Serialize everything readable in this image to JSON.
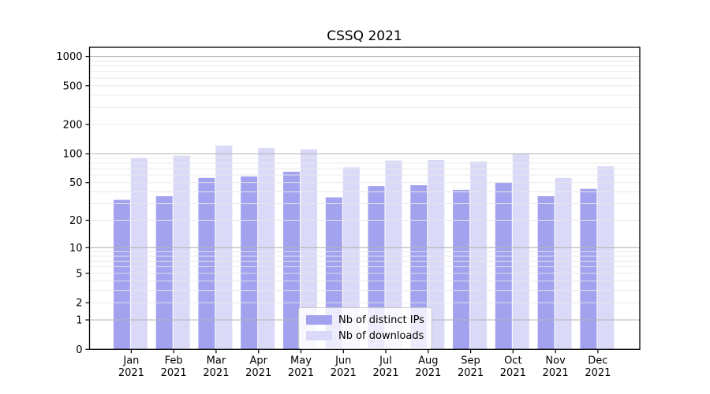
{
  "chart_data": {
    "type": "bar",
    "title": "CSSQ 2021",
    "categories": [
      "Jan",
      "Feb",
      "Mar",
      "Apr",
      "May",
      "Jun",
      "Jul",
      "Aug",
      "Sep",
      "Oct",
      "Nov",
      "Dec"
    ],
    "x_tick_year": "2021",
    "series": [
      {
        "name": "Nb of distinct IPs",
        "color": "#a2a2ef",
        "values": [
          33,
          36,
          56,
          58,
          65,
          35,
          46,
          47,
          42,
          50,
          36,
          43
        ]
      },
      {
        "name": "Nb of downloads",
        "color": "#dadaf8",
        "values": [
          90,
          95,
          121,
          114,
          111,
          72,
          85,
          86,
          83,
          99,
          56,
          74
        ]
      }
    ],
    "yscale": "symlog (position ~ ln(1+v))",
    "ylabel": "",
    "xlabel": "",
    "ylim": [
      0,
      1240
    ],
    "y_ticks": [
      0,
      1,
      2,
      5,
      10,
      20,
      50,
      100,
      200,
      500,
      1000
    ],
    "y_minor_gridlines": [
      3,
      4,
      6,
      7,
      8,
      9,
      30,
      40,
      60,
      70,
      80,
      90,
      300,
      400,
      600,
      700,
      800,
      900
    ],
    "grid": true,
    "legend_position": "lower center",
    "colors": {
      "axis": "#000000",
      "grid_major": "#b4b4b4",
      "grid_minor": "#e8e8e8",
      "background": "#ffffff",
      "tick_label": "#000000"
    }
  }
}
